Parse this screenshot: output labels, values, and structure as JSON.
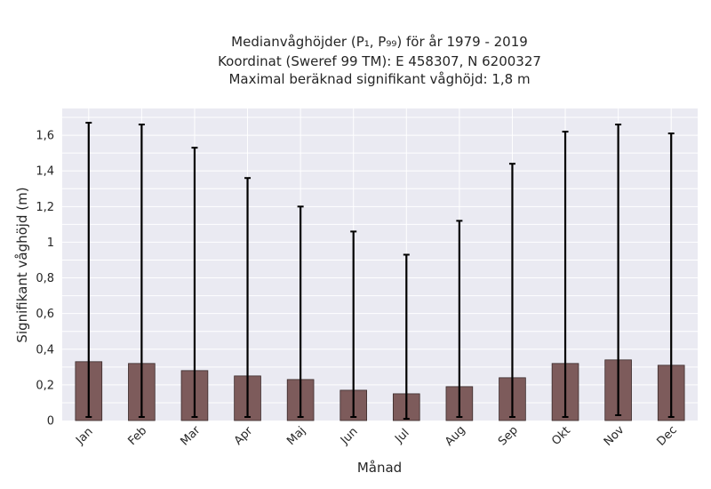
{
  "chart_data": {
    "type": "bar",
    "title_lines": [
      "Medianvåghöjder (P₁, P₉₉) för år 1979 - 2019",
      "Koordinat (Sweref 99 TM): E 458307, N 6200327",
      "Maximal beräknad signifikant våghöjd: 1,8 m"
    ],
    "xlabel": "Månad",
    "ylabel": "Signifikant våghöjd (m)",
    "categories": [
      "Jan",
      "Feb",
      "Mar",
      "Apr",
      "Maj",
      "Jun",
      "Jul",
      "Aug",
      "Sep",
      "Okt",
      "Nov",
      "Dec"
    ],
    "values": [
      0.33,
      0.32,
      0.28,
      0.25,
      0.23,
      0.17,
      0.15,
      0.19,
      0.24,
      0.32,
      0.34,
      0.31
    ],
    "err_low": [
      0.02,
      0.02,
      0.02,
      0.02,
      0.02,
      0.02,
      0.01,
      0.02,
      0.02,
      0.02,
      0.03,
      0.02
    ],
    "err_high": [
      1.67,
      1.66,
      1.53,
      1.36,
      1.2,
      1.06,
      0.93,
      1.12,
      1.44,
      1.62,
      1.66,
      1.61
    ],
    "yticks": [
      0,
      0.2,
      0.4,
      0.6,
      0.8,
      1,
      1.2,
      1.4,
      1.6
    ],
    "ytick_labels": [
      "0",
      "0,2",
      "0,4",
      "0,6",
      "0,8",
      "1",
      "1,2",
      "1,4",
      "1,6"
    ],
    "ylim": [
      0,
      1.75
    ],
    "grid": true,
    "colors": {
      "bar": "#7d5b5b",
      "bar_edge": "#3a2a2a",
      "error": "#000000",
      "plot_bg": "#eaeaf2",
      "grid": "#ffffff",
      "text": "#262626"
    }
  }
}
